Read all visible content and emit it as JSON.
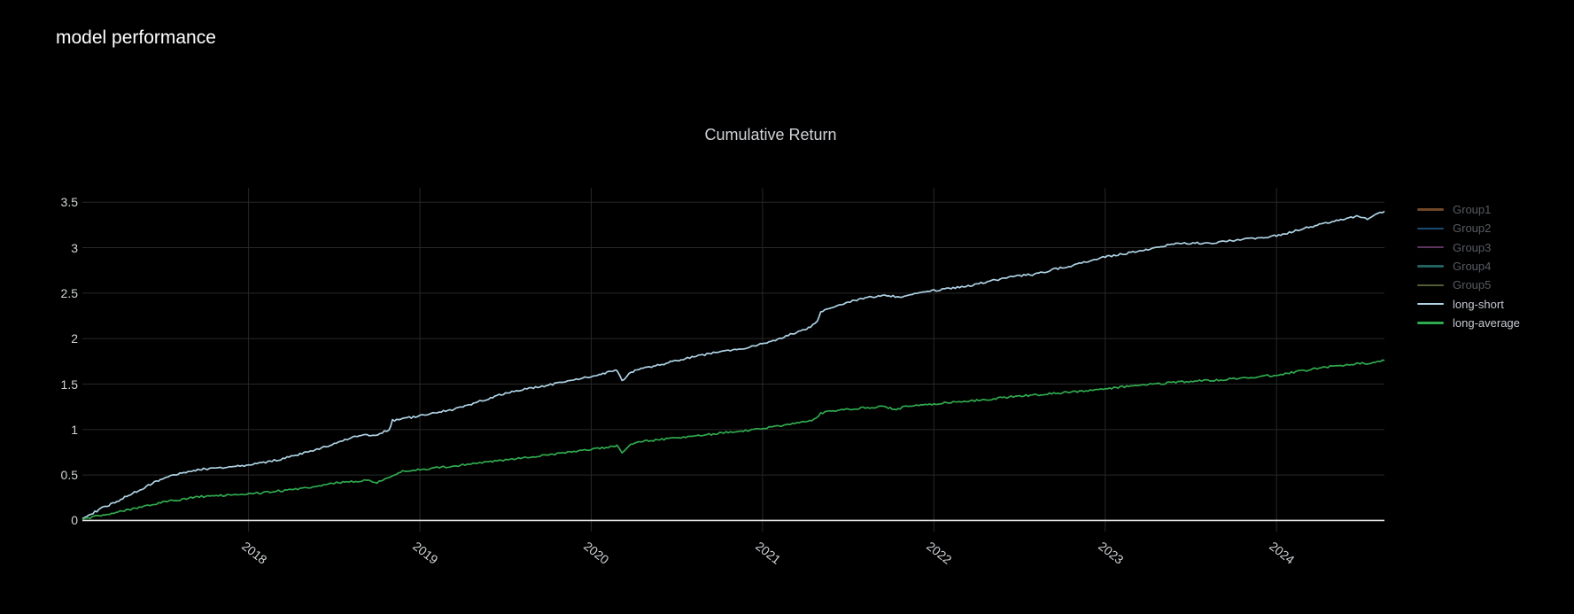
{
  "header": {
    "title": "model performance"
  },
  "chart_data": {
    "type": "line",
    "title": "Cumulative Return",
    "grid": true,
    "legend_position": "right",
    "x_axis": {
      "tick_labels": [
        "2018",
        "2019",
        "2020",
        "2021",
        "2022",
        "2023",
        "2024"
      ],
      "tick_values": [
        2018,
        2019,
        2020,
        2021,
        2022,
        2023,
        2024
      ],
      "range": [
        2017.03,
        2024.63
      ],
      "tick_angle_deg": 38
    },
    "y_axis": {
      "tick_labels": [
        "0",
        "0.5",
        "1",
        "1.5",
        "2",
        "2.5",
        "3",
        "3.5"
      ],
      "tick_values": [
        0,
        0.5,
        1,
        1.5,
        2,
        2.5,
        3,
        3.5
      ],
      "range": [
        -0.122,
        3.658
      ],
      "zeroline": true
    },
    "colors": {
      "background": "#000000",
      "grid": "#282828",
      "zeroline": "#e6e6e6",
      "tick_text": "#d0d3d6",
      "title_text": "#d0d3d6",
      "legend_text_active": "#c6cad0",
      "legend_text_hidden": "#565b61"
    },
    "series": [
      {
        "name": "Group1",
        "color": "#c9824a",
        "visible": false,
        "points": []
      },
      {
        "name": "Group2",
        "color": "#2f86c8",
        "visible": false,
        "points": []
      },
      {
        "name": "Group3",
        "color": "#ab5cab",
        "visible": false,
        "points": []
      },
      {
        "name": "Group4",
        "color": "#3fb0b0",
        "visible": false,
        "points": []
      },
      {
        "name": "Group5",
        "color": "#93a963",
        "visible": false,
        "points": []
      },
      {
        "name": "long-short",
        "color": "#aed2e4",
        "visible": true,
        "points": [
          [
            2017.03,
            0.02
          ],
          [
            2017.08,
            0.07
          ],
          [
            2017.15,
            0.14
          ],
          [
            2017.22,
            0.2
          ],
          [
            2017.3,
            0.28
          ],
          [
            2017.38,
            0.35
          ],
          [
            2017.45,
            0.42
          ],
          [
            2017.52,
            0.47
          ],
          [
            2017.6,
            0.52
          ],
          [
            2017.68,
            0.55
          ],
          [
            2017.76,
            0.57
          ],
          [
            2017.85,
            0.58
          ],
          [
            2017.95,
            0.6
          ],
          [
            2018.0,
            0.61
          ],
          [
            2018.1,
            0.64
          ],
          [
            2018.2,
            0.68
          ],
          [
            2018.3,
            0.73
          ],
          [
            2018.4,
            0.78
          ],
          [
            2018.5,
            0.84
          ],
          [
            2018.6,
            0.91
          ],
          [
            2018.68,
            0.95
          ],
          [
            2018.74,
            0.93
          ],
          [
            2018.78,
            0.97
          ],
          [
            2018.82,
            1.0
          ],
          [
            2018.84,
            1.1
          ],
          [
            2018.9,
            1.12
          ],
          [
            2019.0,
            1.15
          ],
          [
            2019.1,
            1.19
          ],
          [
            2019.2,
            1.22
          ],
          [
            2019.3,
            1.28
          ],
          [
            2019.4,
            1.34
          ],
          [
            2019.5,
            1.4
          ],
          [
            2019.6,
            1.44
          ],
          [
            2019.7,
            1.47
          ],
          [
            2019.8,
            1.51
          ],
          [
            2019.9,
            1.55
          ],
          [
            2020.0,
            1.58
          ],
          [
            2020.08,
            1.62
          ],
          [
            2020.15,
            1.65
          ],
          [
            2020.18,
            1.53
          ],
          [
            2020.22,
            1.62
          ],
          [
            2020.28,
            1.67
          ],
          [
            2020.4,
            1.71
          ],
          [
            2020.5,
            1.76
          ],
          [
            2020.6,
            1.8
          ],
          [
            2020.7,
            1.84
          ],
          [
            2020.8,
            1.87
          ],
          [
            2020.9,
            1.9
          ],
          [
            2021.0,
            1.94
          ],
          [
            2021.1,
            2.0
          ],
          [
            2021.2,
            2.07
          ],
          [
            2021.28,
            2.13
          ],
          [
            2021.32,
            2.19
          ],
          [
            2021.34,
            2.3
          ],
          [
            2021.4,
            2.34
          ],
          [
            2021.5,
            2.4
          ],
          [
            2021.6,
            2.45
          ],
          [
            2021.7,
            2.47
          ],
          [
            2021.8,
            2.46
          ],
          [
            2021.9,
            2.5
          ],
          [
            2022.0,
            2.53
          ],
          [
            2022.1,
            2.55
          ],
          [
            2022.2,
            2.58
          ],
          [
            2022.3,
            2.62
          ],
          [
            2022.4,
            2.66
          ],
          [
            2022.5,
            2.69
          ],
          [
            2022.6,
            2.71
          ],
          [
            2022.7,
            2.76
          ],
          [
            2022.8,
            2.8
          ],
          [
            2022.9,
            2.85
          ],
          [
            2023.0,
            2.9
          ],
          [
            2023.1,
            2.93
          ],
          [
            2023.2,
            2.96
          ],
          [
            2023.3,
            3.0
          ],
          [
            2023.4,
            3.04
          ],
          [
            2023.5,
            3.05
          ],
          [
            2023.6,
            3.05
          ],
          [
            2023.7,
            3.07
          ],
          [
            2023.8,
            3.09
          ],
          [
            2023.9,
            3.11
          ],
          [
            2024.0,
            3.13
          ],
          [
            2024.1,
            3.18
          ],
          [
            2024.2,
            3.23
          ],
          [
            2024.3,
            3.28
          ],
          [
            2024.4,
            3.32
          ],
          [
            2024.48,
            3.35
          ],
          [
            2024.53,
            3.32
          ],
          [
            2024.58,
            3.36
          ],
          [
            2024.63,
            3.4
          ]
        ]
      },
      {
        "name": "long-average",
        "color": "#2faa4e",
        "visible": true,
        "points": [
          [
            2017.03,
            0.01
          ],
          [
            2017.1,
            0.04
          ],
          [
            2017.2,
            0.08
          ],
          [
            2017.3,
            0.12
          ],
          [
            2017.4,
            0.16
          ],
          [
            2017.5,
            0.2
          ],
          [
            2017.6,
            0.23
          ],
          [
            2017.7,
            0.26
          ],
          [
            2017.8,
            0.27
          ],
          [
            2017.9,
            0.28
          ],
          [
            2018.0,
            0.29
          ],
          [
            2018.1,
            0.31
          ],
          [
            2018.2,
            0.33
          ],
          [
            2018.3,
            0.35
          ],
          [
            2018.4,
            0.38
          ],
          [
            2018.5,
            0.41
          ],
          [
            2018.6,
            0.43
          ],
          [
            2018.7,
            0.44
          ],
          [
            2018.75,
            0.42
          ],
          [
            2018.8,
            0.46
          ],
          [
            2018.85,
            0.5
          ],
          [
            2018.9,
            0.54
          ],
          [
            2019.0,
            0.56
          ],
          [
            2019.1,
            0.58
          ],
          [
            2019.2,
            0.6
          ],
          [
            2019.3,
            0.62
          ],
          [
            2019.4,
            0.64
          ],
          [
            2019.5,
            0.67
          ],
          [
            2019.6,
            0.69
          ],
          [
            2019.7,
            0.71
          ],
          [
            2019.8,
            0.73
          ],
          [
            2019.9,
            0.76
          ],
          [
            2020.0,
            0.78
          ],
          [
            2020.1,
            0.81
          ],
          [
            2020.15,
            0.82
          ],
          [
            2020.18,
            0.74
          ],
          [
            2020.22,
            0.83
          ],
          [
            2020.3,
            0.87
          ],
          [
            2020.4,
            0.89
          ],
          [
            2020.5,
            0.91
          ],
          [
            2020.6,
            0.93
          ],
          [
            2020.7,
            0.95
          ],
          [
            2020.8,
            0.97
          ],
          [
            2020.9,
            0.99
          ],
          [
            2021.0,
            1.01
          ],
          [
            2021.1,
            1.04
          ],
          [
            2021.2,
            1.08
          ],
          [
            2021.3,
            1.11
          ],
          [
            2021.34,
            1.18
          ],
          [
            2021.4,
            1.2
          ],
          [
            2021.5,
            1.22
          ],
          [
            2021.6,
            1.24
          ],
          [
            2021.7,
            1.25
          ],
          [
            2021.78,
            1.22
          ],
          [
            2021.85,
            1.26
          ],
          [
            2021.9,
            1.27
          ],
          [
            2022.0,
            1.28
          ],
          [
            2022.1,
            1.3
          ],
          [
            2022.2,
            1.31
          ],
          [
            2022.3,
            1.33
          ],
          [
            2022.4,
            1.35
          ],
          [
            2022.5,
            1.37
          ],
          [
            2022.6,
            1.38
          ],
          [
            2022.7,
            1.4
          ],
          [
            2022.8,
            1.41
          ],
          [
            2022.9,
            1.43
          ],
          [
            2023.0,
            1.45
          ],
          [
            2023.1,
            1.47
          ],
          [
            2023.2,
            1.49
          ],
          [
            2023.3,
            1.5
          ],
          [
            2023.4,
            1.52
          ],
          [
            2023.5,
            1.53
          ],
          [
            2023.6,
            1.54
          ],
          [
            2023.7,
            1.55
          ],
          [
            2023.8,
            1.57
          ],
          [
            2023.9,
            1.58
          ],
          [
            2024.0,
            1.6
          ],
          [
            2024.1,
            1.63
          ],
          [
            2024.2,
            1.66
          ],
          [
            2024.3,
            1.69
          ],
          [
            2024.4,
            1.71
          ],
          [
            2024.5,
            1.73
          ],
          [
            2024.55,
            1.72
          ],
          [
            2024.63,
            1.76
          ]
        ]
      }
    ]
  }
}
